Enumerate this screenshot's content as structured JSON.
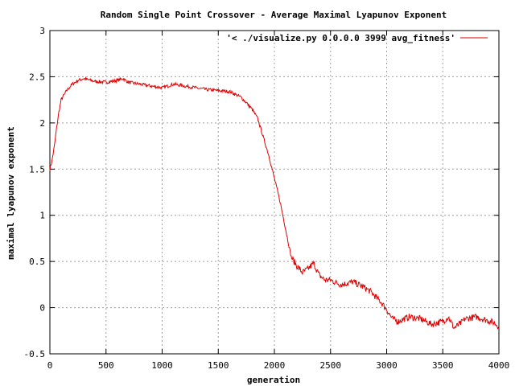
{
  "chart_data": {
    "type": "line",
    "title": "Random Single Point Crossover - Average Maximal Lyapunov Exponent",
    "xlabel": "generation",
    "ylabel": "maximal lyapunov exponent",
    "xlim": [
      0,
      4000
    ],
    "ylim": [
      -0.5,
      3
    ],
    "xticks": [
      0,
      500,
      1000,
      1500,
      2000,
      2500,
      3000,
      3500,
      4000
    ],
    "yticks": [
      -0.5,
      0,
      0.5,
      1,
      1.5,
      2,
      2.5,
      3
    ],
    "ytick_labels": [
      "-0.5",
      "0",
      "0.5",
      "1",
      "1.5",
      "2",
      "2.5",
      "3"
    ],
    "grid": true,
    "legend_position": "top-right",
    "series": [
      {
        "name": "'< ./visualize.py 0.0.0.0 3999 avg_fitness'",
        "color": "#e00000",
        "x": [
          0,
          20,
          40,
          60,
          80,
          100,
          150,
          200,
          250,
          300,
          400,
          500,
          600,
          650,
          700,
          800,
          900,
          1000,
          1100,
          1200,
          1300,
          1400,
          1500,
          1600,
          1700,
          1750,
          1800,
          1850,
          1900,
          1950,
          2000,
          2050,
          2100,
          2150,
          2200,
          2250,
          2300,
          2350,
          2400,
          2450,
          2500,
          2550,
          2600,
          2700,
          2800,
          2850,
          2900,
          2950,
          3000,
          3050,
          3100,
          3200,
          3300,
          3400,
          3500,
          3550,
          3600,
          3650,
          3700,
          3800,
          3900,
          3950,
          4000
        ],
        "y": [
          1.5,
          1.6,
          1.75,
          1.95,
          2.12,
          2.25,
          2.35,
          2.42,
          2.46,
          2.48,
          2.45,
          2.44,
          2.46,
          2.48,
          2.44,
          2.42,
          2.4,
          2.38,
          2.42,
          2.4,
          2.38,
          2.36,
          2.35,
          2.34,
          2.28,
          2.22,
          2.15,
          2.05,
          1.85,
          1.65,
          1.4,
          1.15,
          0.85,
          0.55,
          0.45,
          0.38,
          0.42,
          0.48,
          0.35,
          0.3,
          0.3,
          0.27,
          0.25,
          0.28,
          0.22,
          0.18,
          0.12,
          0.06,
          -0.02,
          -0.12,
          -0.15,
          -0.1,
          -0.12,
          -0.18,
          -0.15,
          -0.1,
          -0.22,
          -0.18,
          -0.12,
          -0.1,
          -0.14,
          -0.16,
          -0.2
        ]
      }
    ]
  }
}
